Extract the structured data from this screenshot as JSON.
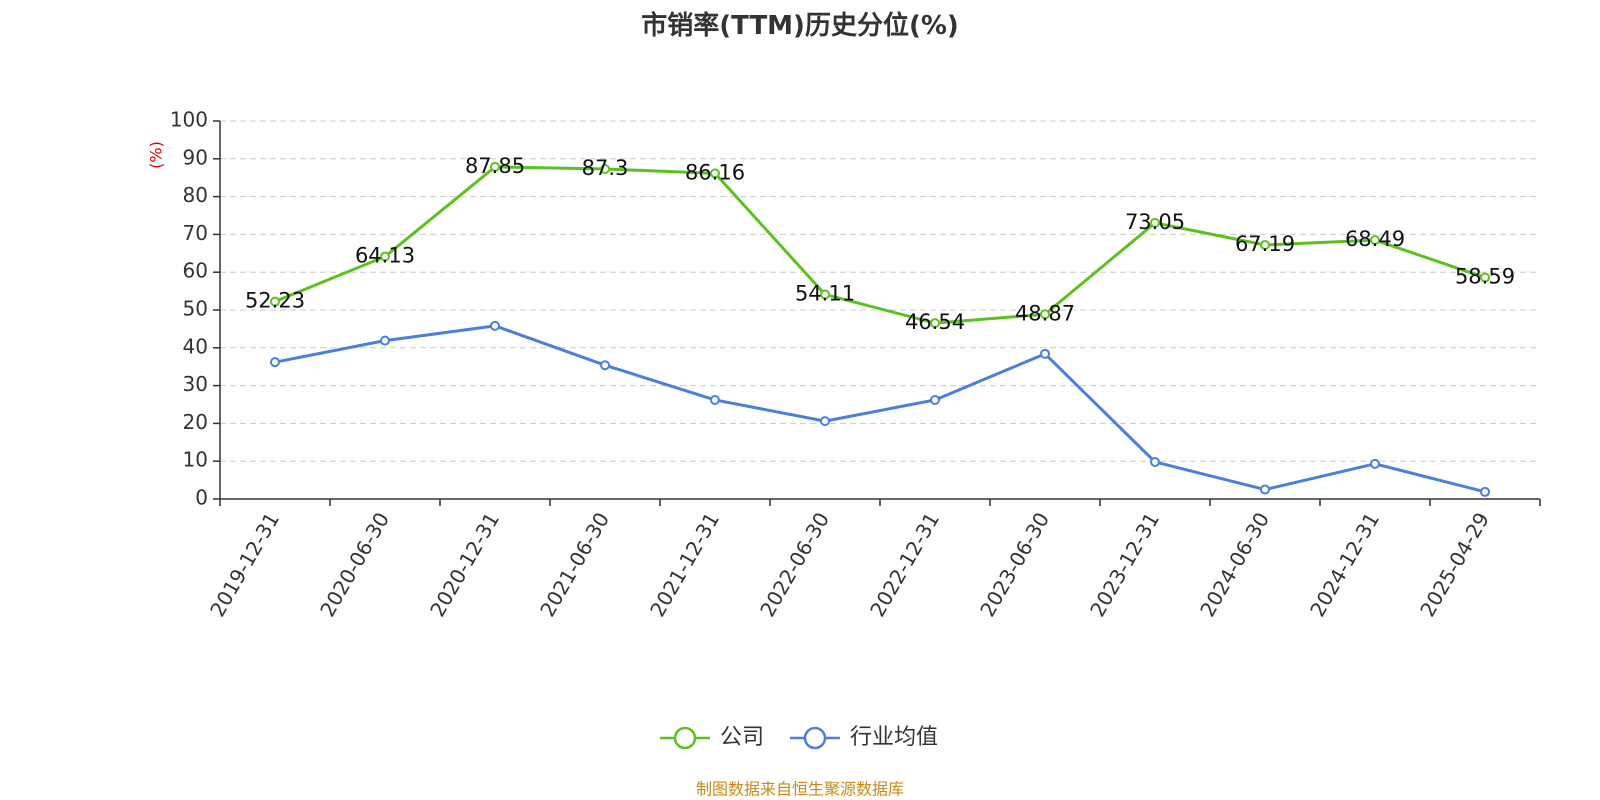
{
  "chart_data": {
    "type": "line",
    "title": "市销率(TTM)历史分位(%)",
    "ylabel": "(%)",
    "ylim": [
      0,
      100
    ],
    "yticks": [
      0,
      10,
      20,
      30,
      40,
      50,
      60,
      70,
      80,
      90,
      100
    ],
    "x": [
      "2019-12-31",
      "2020-06-30",
      "2020-12-31",
      "2021-06-30",
      "2021-12-31",
      "2022-06-30",
      "2022-12-31",
      "2023-06-30",
      "2023-12-31",
      "2024-06-30",
      "2024-12-31",
      "2025-04-29"
    ],
    "grid": true,
    "legend_position": "bottom-center",
    "series": [
      {
        "name": "公司",
        "color": "#5cc11f",
        "values": [
          52.23,
          64.13,
          87.85,
          87.3,
          86.16,
          54.11,
          46.54,
          48.87,
          73.05,
          67.19,
          68.49,
          58.59
        ],
        "labels": [
          "52.23",
          "64.13",
          "87.85",
          "87.3",
          "86.16",
          "54.11",
          "46.54",
          "48.87",
          "73.05",
          "67.19",
          "68.49",
          "58.59"
        ]
      },
      {
        "name": "行业均值",
        "color": "#4a7fdc",
        "values": [
          36.2,
          41.9,
          45.8,
          35.4,
          26.2,
          20.6,
          26.2,
          38.4,
          9.8,
          2.5,
          9.3,
          1.9
        ]
      }
    ]
  },
  "unit_color": "#e00000",
  "source": {
    "text": "制图数据来自恒生聚源数据库",
    "color": "#c8891a"
  }
}
